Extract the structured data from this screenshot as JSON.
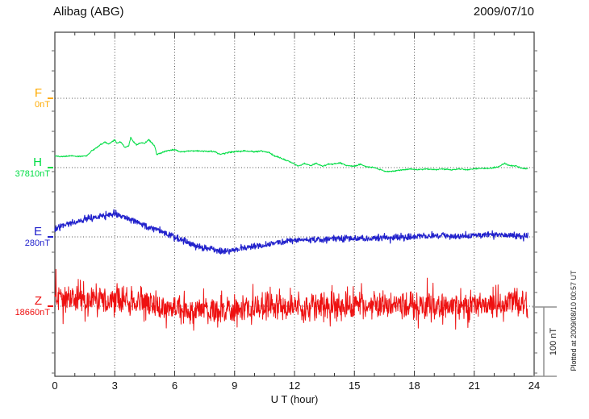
{
  "header": {
    "title": "Alibag (ABG)",
    "date": "2009/07/10"
  },
  "footer": {
    "xlabel": "U T (hour)",
    "plotted_at": "Plotted at 2009/08/10 00:57 UT"
  },
  "scale_bar": {
    "label": "100 nT",
    "nT": 100
  },
  "colors": {
    "F": "#FFAA00",
    "H": "#00DD44",
    "E": "#2222CC",
    "Z": "#EE1111",
    "frame": "#3a3a3a",
    "grid": "#555555",
    "scalebar": "#909090",
    "text": "#111111"
  },
  "chart_data": {
    "type": "line",
    "title": "Alibag (ABG)",
    "date": "2009/07/10",
    "xlabel": "U T (hour)",
    "x_range": [
      0,
      24
    ],
    "x_ticks": [
      "0",
      "3",
      "6",
      "9",
      "12",
      "15",
      "18",
      "21",
      "24"
    ],
    "x_minor_step_hours": 1,
    "grid": "dotted vertical every 3 h, dotted horizontal at each series baseline",
    "legend_position": "left margin, one colored label per trace",
    "scale_bar": {
      "label": "100 nT",
      "nT": 100
    },
    "note": "values below are nT offsets from each series baseline; F trace has no data",
    "series": [
      {
        "name": "F",
        "label": "F",
        "baseline_label": "0nT",
        "baseline_nT": 0,
        "color": "#FFAA00",
        "noise_nT": 0,
        "points": []
      },
      {
        "name": "H",
        "label": "H",
        "baseline_label": "37810nT",
        "baseline_nT": 37810,
        "color": "#00DD44",
        "noise_nT": 1.1,
        "points": [
          [
            0,
            17
          ],
          [
            0.4,
            16
          ],
          [
            0.8,
            17
          ],
          [
            1.2,
            16
          ],
          [
            1.6,
            17
          ],
          [
            1.8,
            23
          ],
          [
            2.0,
            27
          ],
          [
            2.2,
            31
          ],
          [
            2.5,
            37
          ],
          [
            2.7,
            34
          ],
          [
            2.9,
            38
          ],
          [
            3.0,
            40
          ],
          [
            3.1,
            35
          ],
          [
            3.3,
            37
          ],
          [
            3.5,
            29
          ],
          [
            3.7,
            31
          ],
          [
            3.8,
            44
          ],
          [
            3.9,
            38
          ],
          [
            4.1,
            33
          ],
          [
            4.3,
            36
          ],
          [
            4.5,
            35
          ],
          [
            4.7,
            40
          ],
          [
            4.9,
            34
          ],
          [
            5.0,
            31
          ],
          [
            5.1,
            19
          ],
          [
            5.3,
            21
          ],
          [
            5.6,
            24
          ],
          [
            6.0,
            26
          ],
          [
            6.3,
            23
          ],
          [
            6.7,
            24
          ],
          [
            7.0,
            24
          ],
          [
            7.5,
            24
          ],
          [
            8.0,
            23
          ],
          [
            8.3,
            19
          ],
          [
            8.7,
            22
          ],
          [
            9.0,
            23
          ],
          [
            9.5,
            24
          ],
          [
            10.0,
            23
          ],
          [
            10.3,
            24
          ],
          [
            10.7,
            22
          ],
          [
            11.0,
            17
          ],
          [
            11.3,
            14
          ],
          [
            11.6,
            10
          ],
          [
            11.9,
            7
          ],
          [
            12.2,
            2
          ],
          [
            12.5,
            6
          ],
          [
            12.8,
            3
          ],
          [
            13.1,
            6
          ],
          [
            13.4,
            2
          ],
          [
            13.7,
            5
          ],
          [
            14.0,
            5
          ],
          [
            14.3,
            7
          ],
          [
            14.6,
            3
          ],
          [
            15.0,
            2
          ],
          [
            15.3,
            5
          ],
          [
            15.6,
            1
          ],
          [
            16.0,
            0
          ],
          [
            16.3,
            -3
          ],
          [
            16.6,
            -6
          ],
          [
            17.0,
            -5
          ],
          [
            17.4,
            -3
          ],
          [
            17.8,
            -2
          ],
          [
            18.2,
            -3
          ],
          [
            18.6,
            -2
          ],
          [
            19.0,
            -3
          ],
          [
            19.4,
            -2
          ],
          [
            19.8,
            -3
          ],
          [
            20.2,
            -2
          ],
          [
            20.6,
            -3
          ],
          [
            21.0,
            -2
          ],
          [
            21.4,
            -1
          ],
          [
            21.8,
            -1
          ],
          [
            22.2,
            1
          ],
          [
            22.5,
            6
          ],
          [
            22.8,
            3
          ],
          [
            23.1,
            2
          ],
          [
            23.4,
            -1
          ],
          [
            23.7,
            -2
          ]
        ]
      },
      {
        "name": "E",
        "label": "E",
        "baseline_label": "280nT",
        "baseline_nT": 280,
        "color": "#2222CC",
        "noise_nT": 5.5,
        "points": [
          [
            0,
            12
          ],
          [
            0.5,
            16
          ],
          [
            1,
            21
          ],
          [
            1.5,
            26
          ],
          [
            2,
            28
          ],
          [
            2.5,
            31
          ],
          [
            3,
            33
          ],
          [
            3.5,
            28
          ],
          [
            4,
            23
          ],
          [
            4.5,
            17
          ],
          [
            5,
            12
          ],
          [
            5.5,
            6
          ],
          [
            6,
            0
          ],
          [
            6.5,
            -6
          ],
          [
            7,
            -12
          ],
          [
            7.5,
            -16
          ],
          [
            8,
            -19
          ],
          [
            8.5,
            -20
          ],
          [
            9,
            -19
          ],
          [
            9.5,
            -16
          ],
          [
            10,
            -14
          ],
          [
            10.5,
            -12
          ],
          [
            11,
            -9
          ],
          [
            11.5,
            -7
          ],
          [
            12,
            -5
          ],
          [
            13,
            -4
          ],
          [
            14,
            -3
          ],
          [
            15,
            -2
          ],
          [
            16,
            -2
          ],
          [
            17,
            -1
          ],
          [
            18,
            0
          ],
          [
            19,
            1
          ],
          [
            20,
            1
          ],
          [
            21,
            2
          ],
          [
            22,
            3
          ],
          [
            23,
            2
          ],
          [
            23.7,
            1
          ]
        ]
      },
      {
        "name": "Z",
        "label": "Z",
        "baseline_label": "18660nT",
        "baseline_nT": 18660,
        "color": "#EE1111",
        "noise_nT": 24,
        "points": [
          [
            0,
            9
          ],
          [
            1,
            10
          ],
          [
            2,
            9
          ],
          [
            3,
            8
          ],
          [
            4,
            6
          ],
          [
            5,
            0
          ],
          [
            6,
            -5
          ],
          [
            7,
            -7
          ],
          [
            8,
            -7
          ],
          [
            9,
            -5
          ],
          [
            10,
            -1
          ],
          [
            11,
            1
          ],
          [
            12,
            0
          ],
          [
            13,
            -1
          ],
          [
            14,
            0
          ],
          [
            15,
            0
          ],
          [
            16,
            1
          ],
          [
            17,
            0
          ],
          [
            18,
            0
          ],
          [
            19,
            1
          ],
          [
            20,
            0
          ],
          [
            21,
            1
          ],
          [
            22,
            2
          ],
          [
            23,
            3
          ],
          [
            23.7,
            3
          ]
        ]
      }
    ]
  }
}
